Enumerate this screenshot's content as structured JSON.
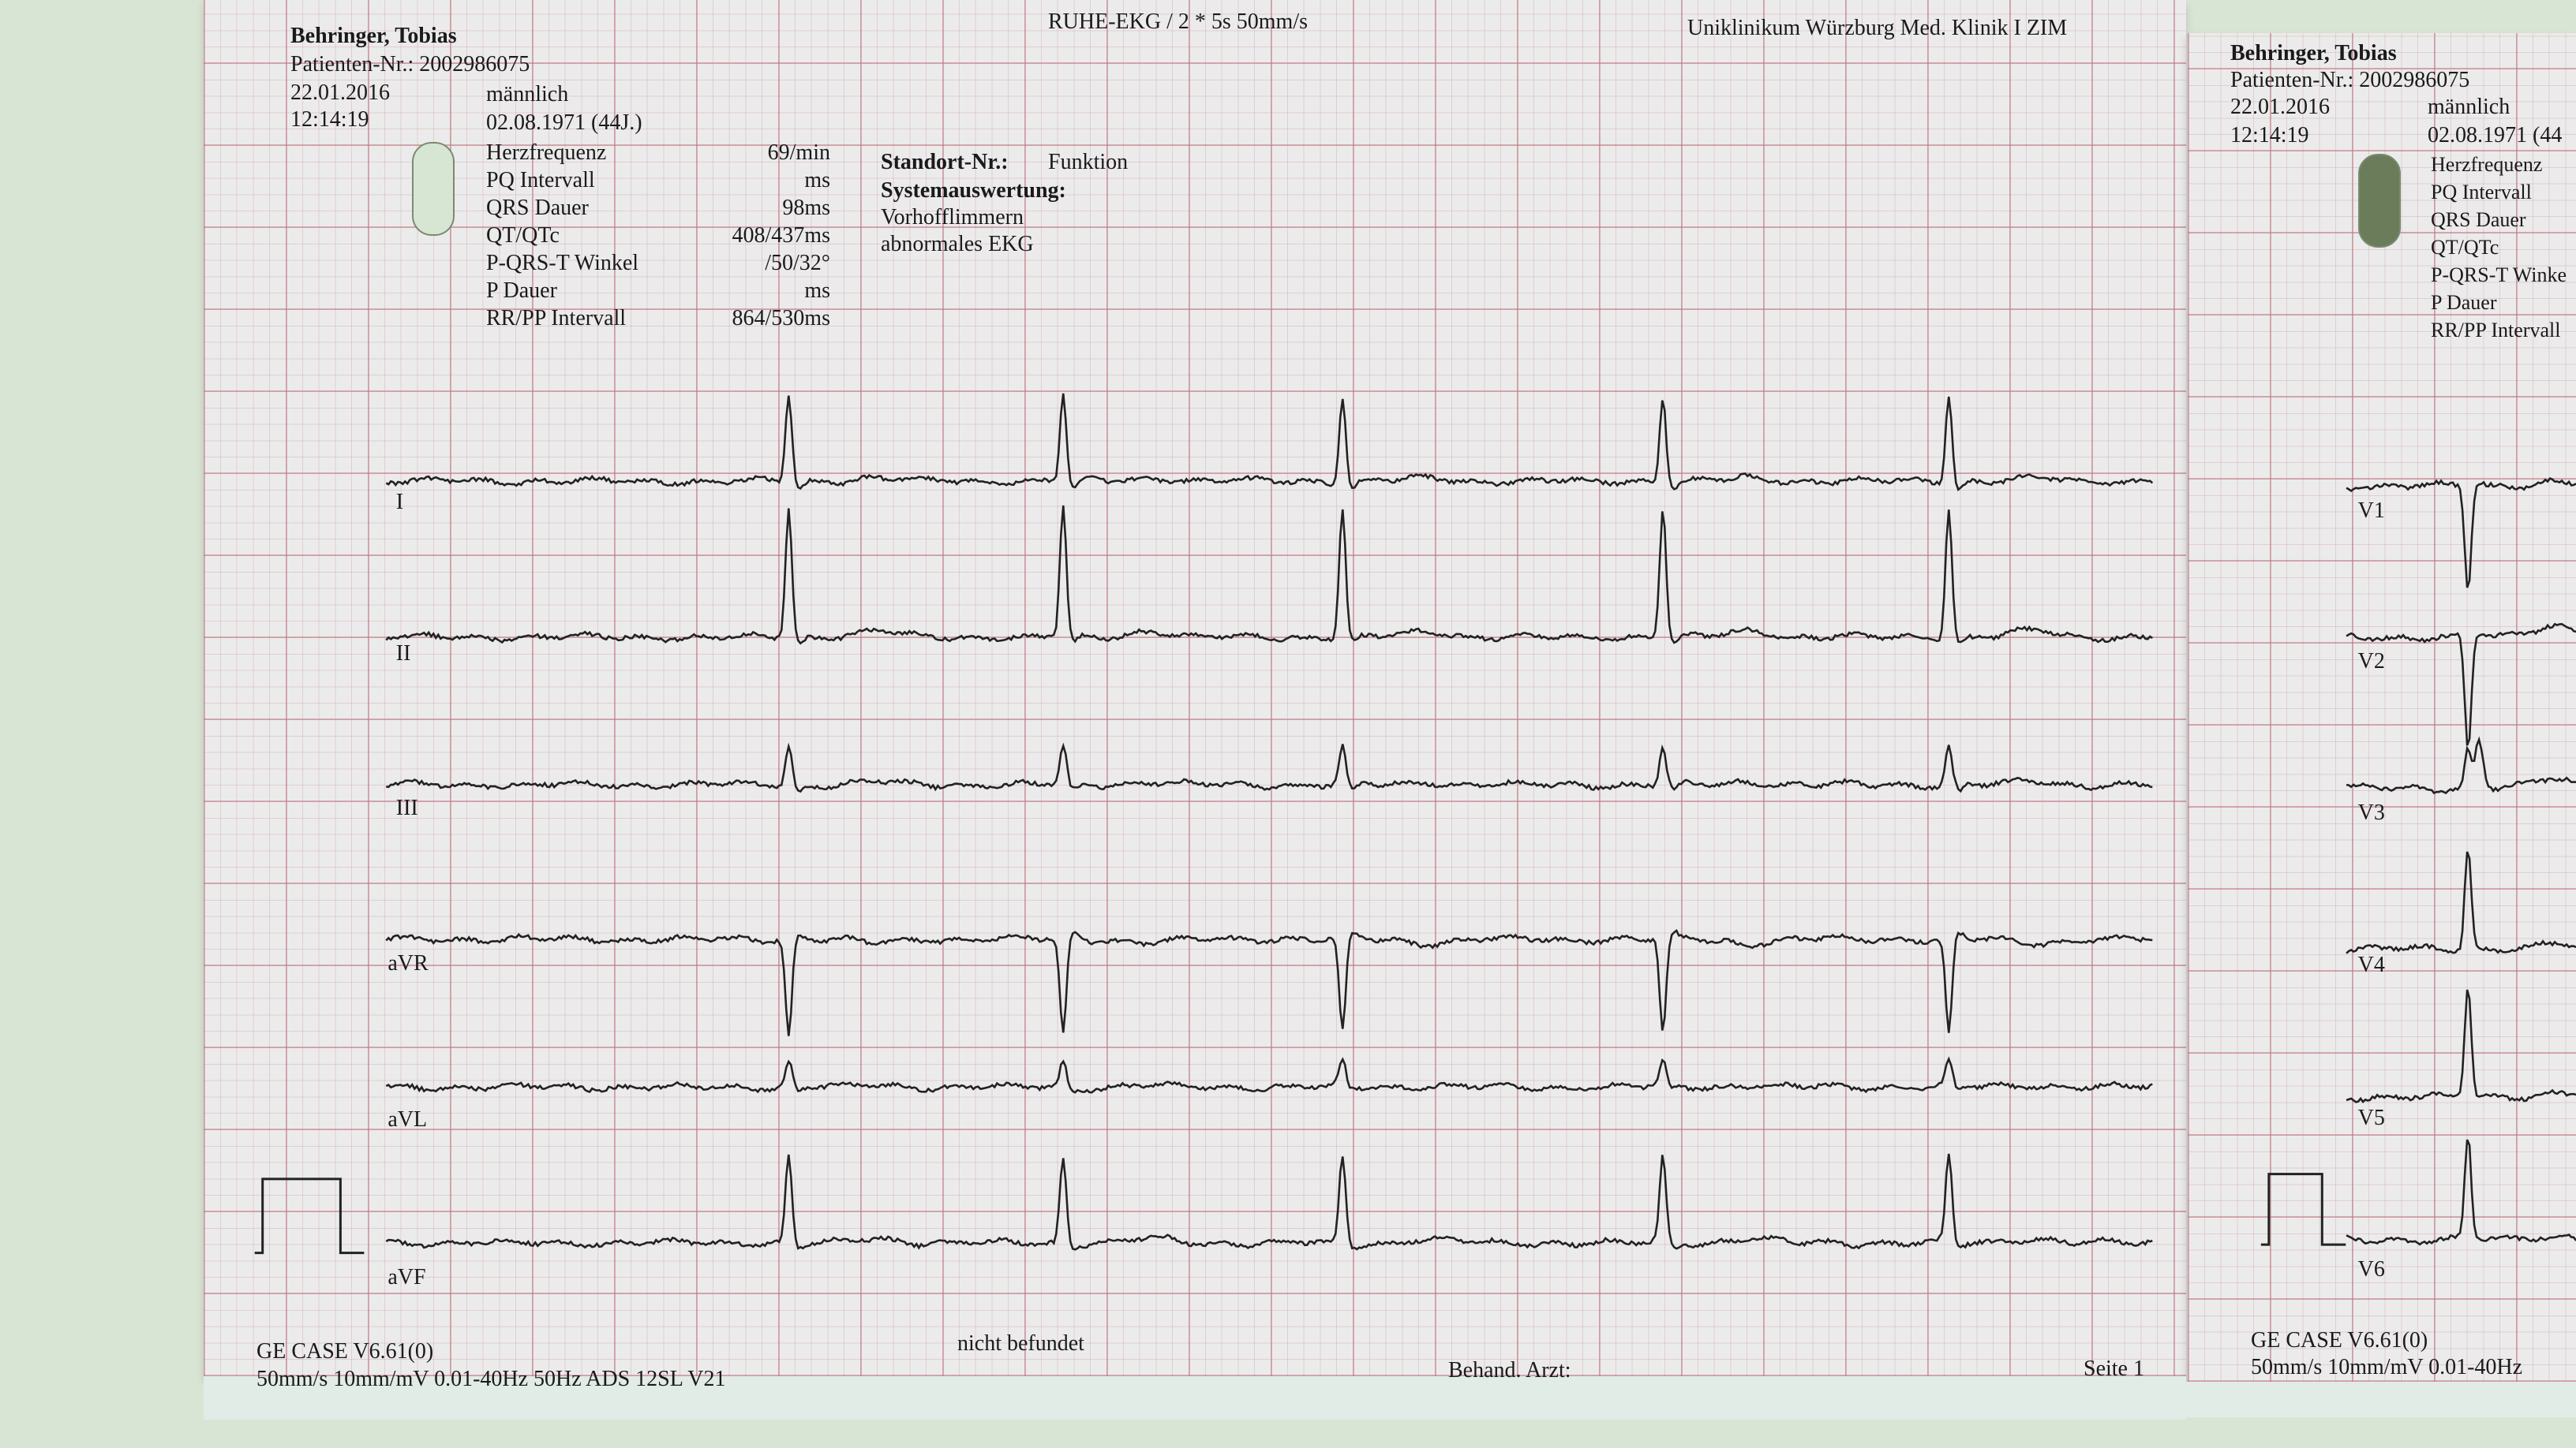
{
  "header": {
    "title": "RUHE-EKG / 2 * 5s 50mm/s",
    "institution": "Uniklinikum Würzburg Med. Klinik I ZIM"
  },
  "patient": {
    "name": "Behringer, Tobias",
    "patient_no": "Patienten-Nr.: 2002986075",
    "date": "22.01.2016",
    "time": "12:14:19",
    "sex": "männlich",
    "birthdate": "02.08.1971  (44J.)"
  },
  "measurements": [
    {
      "label": "Herzfrequenz",
      "value": "69/min"
    },
    {
      "label": "PQ Intervall",
      "value": "ms"
    },
    {
      "label": "QRS Dauer",
      "value": "98ms"
    },
    {
      "label": "QT/QTc",
      "value": "408/437ms"
    },
    {
      "label": "P-QRS-T Winkel",
      "value": "/50/32°"
    },
    {
      "label": "P Dauer",
      "value": "ms"
    },
    {
      "label": "RR/PP Intervall",
      "value": "864/530ms"
    }
  ],
  "interpretation": {
    "location_label": "Standort-Nr.:",
    "location_value": "Funktion",
    "system_label": "Systemauswertung:",
    "lines": [
      "Vorhofflimmern",
      "abnormales EKG"
    ]
  },
  "leads_page1": [
    "I",
    "II",
    "III",
    "aVR",
    "aVL",
    "aVF"
  ],
  "leads_page2": [
    "V1",
    "V2",
    "V3",
    "V4",
    "V5",
    "V6"
  ],
  "footer": {
    "device": "GE CASE V6.61(0)",
    "settings": "50mm/s  10mm/mV   0.01-40Hz   50Hz   ADS   12SL  V21",
    "status": "nicht befundet",
    "physician": "Behand. Arzt:",
    "page": "Seite 1"
  },
  "page2": {
    "name": "Behringer, Tobias",
    "patient_no": "Patienten-Nr.: 2002986075",
    "date": "22.01.2016",
    "time": "12:14:19",
    "sex": "männlich",
    "birthdate": "02.08.1971  (44",
    "measurement_labels": [
      "Herzfrequenz",
      "PQ Intervall",
      "QRS Dauer",
      "QT/QTc",
      "P-QRS-T Winke",
      "P Dauer",
      "RR/PP Intervall"
    ],
    "device": "GE CASE V6.61(0)",
    "settings": "50mm/s  10mm/mV   0.01-40Hz"
  },
  "colors": {
    "trace": "#222222",
    "grid": "#be7882",
    "background": "#d9e5d4"
  }
}
